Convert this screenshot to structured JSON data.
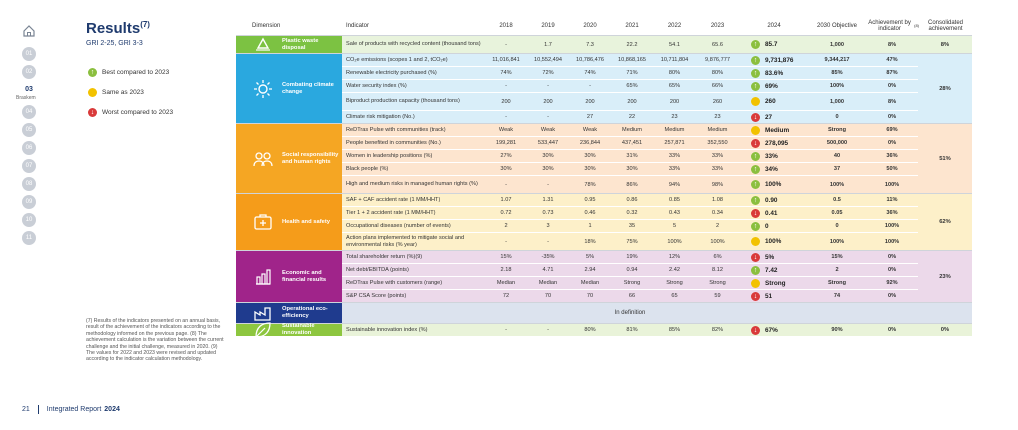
{
  "nav": {
    "items": [
      "01",
      "02",
      "03",
      "04",
      "05",
      "06",
      "07",
      "08",
      "09",
      "10",
      "11"
    ],
    "active": "03",
    "active_sub": "Braskem"
  },
  "title": "Results",
  "title_note": "(7)",
  "subtitle": "GRI 2-25, GRI 3-3",
  "legend": {
    "best": "Best compared to 2023",
    "same": "Same as 2023",
    "worst": "Worst compared to 2023"
  },
  "colors": {
    "best": "#8bbf3f",
    "same": "#f2c200",
    "worst": "#d93a3a",
    "plastic": "#7cc242",
    "climate": "#2aa8df",
    "social": "#f5a623",
    "health": "#f59c1a",
    "economic": "#a0248a",
    "operational": "#1f3b8e",
    "innovation": "#8dc63f"
  },
  "headers": {
    "dimension": "Dimension",
    "indicator": "Indicator",
    "y2018": "2018",
    "y2019": "2019",
    "y2020": "2020",
    "y2021": "2021",
    "y2022": "2022",
    "y2023": "2023",
    "y2024": "2024",
    "objective": "2030 Objective",
    "achievement": "Achievement by indicator",
    "achievement_note": "(8)",
    "consolidated": "Consolidated achievement"
  },
  "dimensions": [
    {
      "key": "plastic",
      "label": "Plastic waste disposal",
      "icon": "recycle-icon",
      "consolidated": "8%",
      "rows": [
        {
          "indicator": "Sale of products with recycled content (thousand tons)",
          "v": [
            "-",
            "1.7",
            "7.3",
            "22.2",
            "54.1",
            "65.6"
          ],
          "trend": "best",
          "v24": "85.7",
          "obj": "1,000",
          "ach": "8%"
        }
      ]
    },
    {
      "key": "climate",
      "label": "Combating climate change",
      "icon": "sun-icon",
      "consolidated": "28%",
      "rows": [
        {
          "indicator": "CO₂e emissions (scopes 1 and 2, tCO₂e)",
          "v": [
            "11,016,841",
            "10,552,494",
            "10,786,476",
            "10,868,165",
            "10,711,804",
            "9,876,777"
          ],
          "trend": "best",
          "v24": "9,731,876",
          "obj": "9,344,217",
          "ach": "47%"
        },
        {
          "indicator": "Renewable electricity purchased (%)",
          "v": [
            "74%",
            "72%",
            "74%",
            "71%",
            "80%",
            "80%"
          ],
          "trend": "best",
          "v24": "83.6%",
          "obj": "85%",
          "ach": "87%"
        },
        {
          "indicator": "Water security index (%)",
          "v": [
            "-",
            "-",
            "-",
            "65%",
            "65%",
            "66%"
          ],
          "trend": "best",
          "v24": "69%",
          "obj": "100%",
          "ach": "0%"
        },
        {
          "indicator": "Biproduct production capacity (thousand tons)",
          "v": [
            "200",
            "200",
            "200",
            "200",
            "200",
            "260"
          ],
          "trend": "same",
          "v24": "260",
          "obj": "1,000",
          "ach": "8%"
        },
        {
          "indicator": "Climate risk mitigation (No.)",
          "v": [
            "-",
            "-",
            "27",
            "22",
            "23",
            "23"
          ],
          "trend": "worst",
          "v24": "27",
          "obj": "0",
          "ach": "0%"
        }
      ]
    },
    {
      "key": "social",
      "label": "Social responsibility and human rights",
      "icon": "people-icon",
      "consolidated": "51%",
      "rows": [
        {
          "indicator": "ReDTras Pulse with communities (track)",
          "v": [
            "Weak",
            "Weak",
            "Weak",
            "Medium",
            "Medium",
            "Medium"
          ],
          "trend": "same",
          "v24": "Medium",
          "obj": "Strong",
          "ach": "69%"
        },
        {
          "indicator": "People benefited in communities (No.)",
          "v": [
            "199,281",
            "533,447",
            "236,844",
            "437,451",
            "257,871",
            "352,550"
          ],
          "trend": "worst",
          "v24": "278,095",
          "obj": "500,000",
          "ach": "0%"
        },
        {
          "indicator": "Women in leadership positions (%)",
          "v": [
            "27%",
            "30%",
            "30%",
            "31%",
            "33%",
            "33%"
          ],
          "trend": "best",
          "v24": "33%",
          "obj": "40",
          "ach": "36%"
        },
        {
          "indicator": "Black people (%)",
          "v": [
            "30%",
            "30%",
            "30%",
            "30%",
            "33%",
            "33%"
          ],
          "trend": "best",
          "v24": "34%",
          "obj": "37",
          "ach": "50%"
        },
        {
          "indicator": "High and medium risks in managed human rights (%)",
          "v": [
            "-",
            "-",
            "78%",
            "86%",
            "94%",
            "98%"
          ],
          "trend": "best",
          "v24": "100%",
          "obj": "100%",
          "ach": "100%"
        }
      ]
    },
    {
      "key": "health",
      "label": "Health and safety",
      "icon": "medkit-icon",
      "consolidated": "62%",
      "rows": [
        {
          "indicator": "SAF + CAF accident rate (1 MM/HHT)",
          "v": [
            "1.07",
            "1.31",
            "0.95",
            "0.86",
            "0.85",
            "1.08"
          ],
          "trend": "best",
          "v24": "0.90",
          "obj": "0.5",
          "ach": "11%"
        },
        {
          "indicator": "Tier 1 + 2 accident rate (1 MM/HHT)",
          "v": [
            "0.72",
            "0.73",
            "0.46",
            "0.32",
            "0.43",
            "0.34"
          ],
          "trend": "worst",
          "v24": "0.41",
          "obj": "0.05",
          "ach": "36%"
        },
        {
          "indicator": "Occupational diseases (number of events)",
          "v": [
            "2",
            "3",
            "1",
            "35",
            "5",
            "2"
          ],
          "trend": "best",
          "v24": "0",
          "obj": "0",
          "ach": "100%"
        },
        {
          "indicator": "Action plans implemented to mitigate social and environmental risks (% year)",
          "v": [
            "-",
            "-",
            "18%",
            "75%",
            "100%",
            "100%"
          ],
          "trend": "same",
          "v24": "100%",
          "obj": "100%",
          "ach": "100%"
        }
      ]
    },
    {
      "key": "economic",
      "label": "Economic and financial results",
      "icon": "chart-icon",
      "consolidated": "23%",
      "rows": [
        {
          "indicator": "Total shareholder return (%)(9)",
          "v": [
            "15%",
            "-35%",
            "5%",
            "19%",
            "12%",
            "6%"
          ],
          "trend": "worst",
          "v24": "5%",
          "obj": "15%",
          "ach": "0%"
        },
        {
          "indicator": "Net debt/EBITDA (points)",
          "v": [
            "2.18",
            "4.71",
            "2.94",
            "0.94",
            "2.42",
            "8.12"
          ],
          "trend": "best",
          "v24": "7.42",
          "obj": "2",
          "ach": "0%"
        },
        {
          "indicator": "ReDTras Pulse with customers (range)",
          "v": [
            "Median",
            "Median",
            "Median",
            "Strong",
            "Strong",
            "Strong"
          ],
          "trend": "same",
          "v24": "Strong",
          "obj": "Strong",
          "ach": "92%"
        },
        {
          "indicator": "S&P CSA Score (points)",
          "v": [
            "72",
            "70",
            "70",
            "66",
            "65",
            "59"
          ],
          "trend": "worst",
          "v24": "51",
          "obj": "74",
          "ach": "0%"
        }
      ]
    },
    {
      "key": "operational",
      "label": "Operational eco-efficiency",
      "icon": "factory-icon",
      "in_definition": "In definition"
    },
    {
      "key": "innovation",
      "label": "Sustainable innovation",
      "icon": "leaf-icon",
      "consolidated": "0%",
      "rows": [
        {
          "indicator": "Sustainable innovation index (%)",
          "v": [
            "-",
            "-",
            "80%",
            "81%",
            "85%",
            "82%"
          ],
          "trend": "worst",
          "v24": "67%",
          "obj": "90%",
          "ach": "0%"
        }
      ]
    }
  ],
  "notes": "(7) Results of the indicators presented on an annual basis, result of the achievement of the indicators according to the methodology informed on the previous page. (8) The achievement calculation is the variation between the current challenge and the initial challenge, measured in 2020. (9) The values for 2022 and 2023 were revised and updated according to the indicator calculation methodology.",
  "footer": {
    "page": "21",
    "report": "Integrated Report",
    "year": "2024"
  }
}
